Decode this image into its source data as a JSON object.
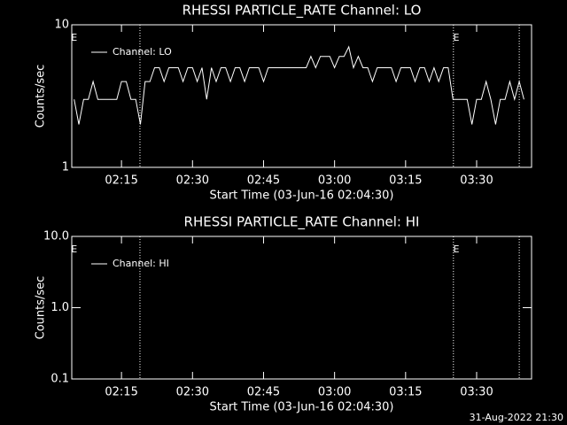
{
  "chart_data": [
    {
      "type": "line",
      "title": "RHESSI PARTICLE_RATE Channel: LO",
      "y_label": "Counts/sec",
      "x_label": "Start Time (03-Jun-16 02:04:30)",
      "log_y": true,
      "ylim": [
        1,
        10
      ],
      "yticks": [
        1,
        10
      ],
      "xlim": [
        124.5,
        221.6
      ],
      "xticks": [
        {
          "value": 135,
          "label": "02:15"
        },
        {
          "value": 150,
          "label": "02:30"
        },
        {
          "value": 165,
          "label": "02:45"
        },
        {
          "value": 180,
          "label": "03:00"
        },
        {
          "value": 195,
          "label": "03:15"
        },
        {
          "value": 210,
          "label": "03:30"
        }
      ],
      "legend": "upper left",
      "vlines": [
        138.9,
        205.1,
        219.0
      ],
      "annotations": [
        {
          "text": "E",
          "x": 125
        },
        {
          "text": "E",
          "x": 205.7
        }
      ],
      "x": [
        125,
        126,
        127,
        128,
        129,
        130,
        131,
        132,
        133,
        134,
        135,
        136,
        137,
        138,
        139,
        140,
        141,
        142,
        143,
        144,
        145,
        146,
        147,
        148,
        149,
        150,
        151,
        152,
        153,
        154,
        155,
        156,
        157,
        158,
        159,
        160,
        161,
        162,
        163,
        164,
        165,
        166,
        167,
        168,
        169,
        170,
        171,
        172,
        173,
        174,
        175,
        176,
        177,
        178,
        179,
        180,
        181,
        182,
        183,
        184,
        185,
        186,
        187,
        188,
        189,
        190,
        191,
        192,
        193,
        194,
        195,
        196,
        197,
        198,
        199,
        200,
        201,
        202,
        203,
        204,
        205,
        206,
        207,
        208,
        209,
        210,
        211,
        212,
        213,
        214,
        215,
        216,
        217,
        218,
        219,
        220
      ],
      "series": [
        {
          "name": "Channel: LO",
          "color": "#ffffff",
          "values": [
            3,
            2,
            3,
            3,
            4,
            3,
            3,
            3,
            3,
            3,
            4,
            4,
            3,
            3,
            2,
            4,
            4,
            5,
            5,
            4,
            5,
            5,
            5,
            4,
            5,
            5,
            4,
            5,
            3,
            5,
            4,
            5,
            5,
            4,
            5,
            5,
            4,
            5,
            5,
            5,
            4,
            5,
            5,
            5,
            5,
            5,
            5,
            5,
            5,
            5,
            6,
            5,
            6,
            6,
            6,
            5,
            6,
            6,
            7,
            5,
            6,
            5,
            5,
            4,
            5,
            5,
            5,
            5,
            4,
            5,
            5,
            5,
            4,
            5,
            5,
            4,
            5,
            4,
            5,
            5,
            3,
            3,
            3,
            3,
            2,
            3,
            3,
            4,
            3,
            2,
            3,
            3,
            4,
            3,
            4,
            3
          ]
        }
      ]
    },
    {
      "type": "line",
      "title": "RHESSI PARTICLE_RATE Channel: HI",
      "y_label": "Counts/sec",
      "x_label": "Start Time (03-Jun-16 02:04:30)",
      "log_y": true,
      "ylim": [
        0.1,
        10
      ],
      "yticks": [
        0.1,
        {
          "value": 1,
          "label": "1.0"
        },
        {
          "value": 10,
          "label": "10.0"
        }
      ],
      "xlim": [
        124.5,
        221.6
      ],
      "xticks": [
        {
          "value": 135,
          "label": "02:15"
        },
        {
          "value": 150,
          "label": "02:30"
        },
        {
          "value": 165,
          "label": "02:45"
        },
        {
          "value": 180,
          "label": "03:00"
        },
        {
          "value": 195,
          "label": "03:15"
        },
        {
          "value": 210,
          "label": "03:30"
        }
      ],
      "legend": "upper left",
      "vlines": [
        138.9,
        205.1,
        219.0
      ],
      "annotations": [
        {
          "text": "E",
          "x": 125
        },
        {
          "text": "E",
          "x": 205.7
        }
      ],
      "x": [],
      "series": [
        {
          "name": "Channel: HI",
          "color": "#ffffff",
          "values": []
        }
      ]
    }
  ],
  "footer": "31-Aug-2022 21:30"
}
